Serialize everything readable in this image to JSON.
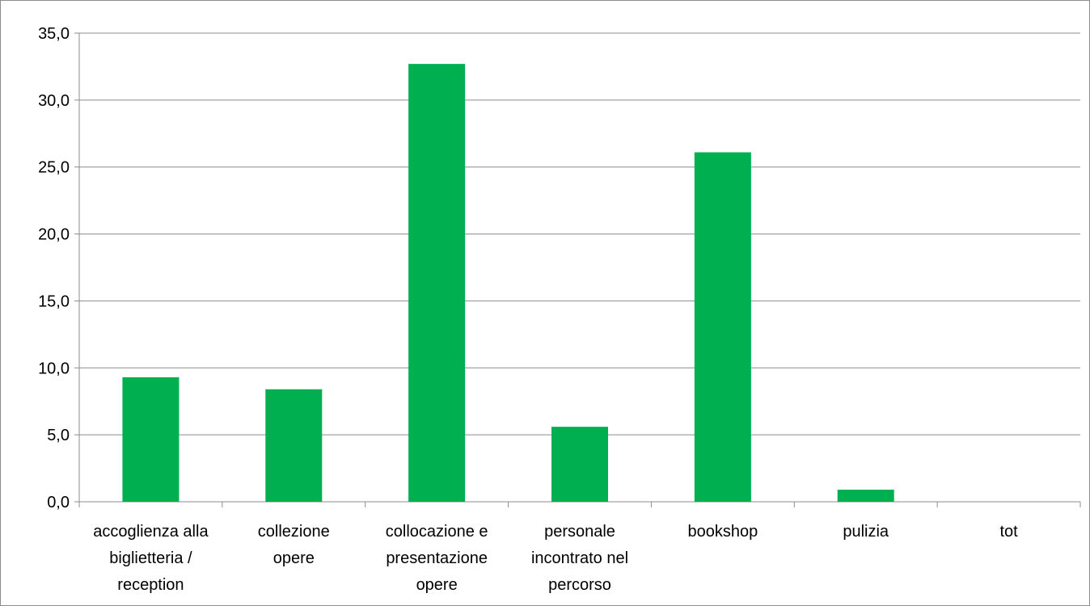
{
  "chart_data": {
    "type": "bar",
    "title": "",
    "xlabel": "",
    "ylabel": "",
    "ylim": [
      0,
      35
    ],
    "yticks": [
      0,
      5,
      10,
      15,
      20,
      25,
      30,
      35
    ],
    "ytick_labels": [
      "0,0",
      "5,0",
      "10,0",
      "15,0",
      "20,0",
      "25,0",
      "30,0",
      "35,0"
    ],
    "grid": true,
    "legend": "none",
    "bar_color": "#00B050",
    "categories": [
      [
        "accoglienza alla",
        "biglietteria /",
        "reception"
      ],
      [
        "collezione",
        "opere"
      ],
      [
        "collocazione e",
        "presentazione",
        "opere"
      ],
      [
        "personale",
        "incontrato nel",
        "percorso"
      ],
      [
        "bookshop"
      ],
      [
        "pulizia"
      ],
      [
        "tot"
      ]
    ],
    "values": [
      9.3,
      8.4,
      32.7,
      5.6,
      26.1,
      0.9,
      0
    ]
  }
}
